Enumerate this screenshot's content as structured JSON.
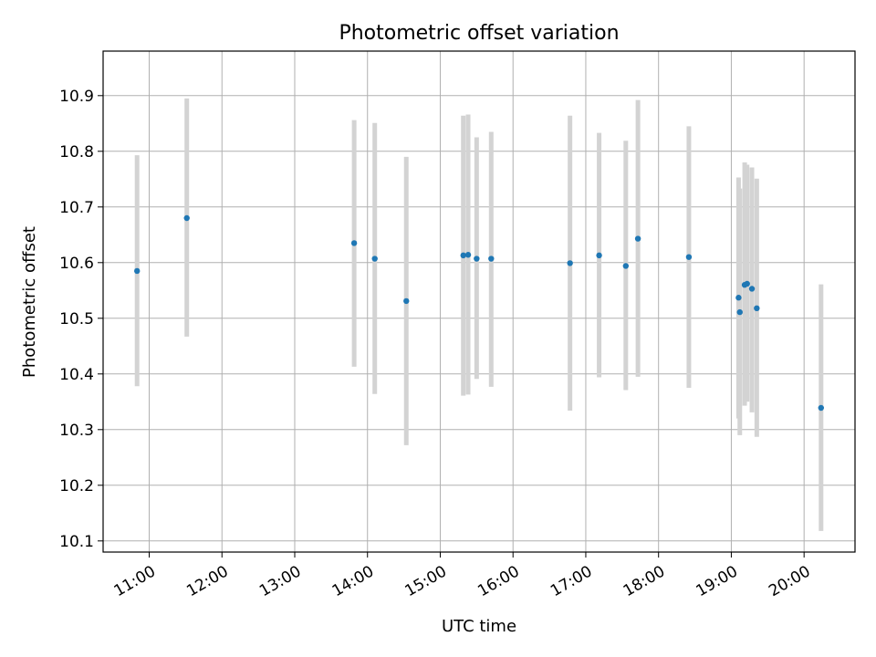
{
  "chart_data": {
    "type": "scatter",
    "title": "Photometric offset variation",
    "xlabel": "UTC time",
    "ylabel": "Photometric offset",
    "x_tick_labels": [
      "11:00",
      "12:00",
      "13:00",
      "14:00",
      "15:00",
      "16:00",
      "17:00",
      "18:00",
      "19:00",
      "20:00"
    ],
    "y_tick_labels": [
      "10.1",
      "10.2",
      "10.3",
      "10.4",
      "10.5",
      "10.6",
      "10.7",
      "10.8",
      "10.9"
    ],
    "xlim": [
      "10:22",
      "20:42"
    ],
    "ylim": [
      10.08,
      10.98
    ],
    "grid": true,
    "legend": "none",
    "point_color": "#1f77b4",
    "errorbar_color": "#d3d3d3",
    "series": [
      {
        "points": [
          {
            "x": "10:50",
            "y": 10.585,
            "low": 10.378,
            "high": 10.793
          },
          {
            "x": "11:31",
            "y": 10.68,
            "low": 10.467,
            "high": 10.895
          },
          {
            "x": "13:49",
            "y": 10.635,
            "low": 10.413,
            "high": 10.856
          },
          {
            "x": "14:06",
            "y": 10.607,
            "low": 10.364,
            "high": 10.851
          },
          {
            "x": "14:32",
            "y": 10.531,
            "low": 10.272,
            "high": 10.79
          },
          {
            "x": "15:19",
            "y": 10.613,
            "low": 10.361,
            "high": 10.864
          },
          {
            "x": "15:23",
            "y": 10.614,
            "low": 10.363,
            "high": 10.866
          },
          {
            "x": "15:30",
            "y": 10.607,
            "low": 10.391,
            "high": 10.825
          },
          {
            "x": "15:42",
            "y": 10.607,
            "low": 10.377,
            "high": 10.835
          },
          {
            "x": "16:47",
            "y": 10.599,
            "low": 10.334,
            "high": 10.864
          },
          {
            "x": "17:11",
            "y": 10.613,
            "low": 10.394,
            "high": 10.833
          },
          {
            "x": "17:33",
            "y": 10.594,
            "low": 10.371,
            "high": 10.819
          },
          {
            "x": "17:43",
            "y": 10.643,
            "low": 10.395,
            "high": 10.892
          },
          {
            "x": "18:25",
            "y": 10.61,
            "low": 10.375,
            "high": 10.845
          },
          {
            "x": "19:06",
            "y": 10.537,
            "low": 10.32,
            "high": 10.753
          },
          {
            "x": "19:07",
            "y": 10.511,
            "low": 10.29,
            "high": 10.733
          },
          {
            "x": "19:11",
            "y": 10.56,
            "low": 10.343,
            "high": 10.78
          },
          {
            "x": "19:13",
            "y": 10.562,
            "low": 10.35,
            "high": 10.776
          },
          {
            "x": "19:17",
            "y": 10.553,
            "low": 10.331,
            "high": 10.771
          },
          {
            "x": "19:21",
            "y": 10.518,
            "low": 10.287,
            "high": 10.751
          },
          {
            "x": "20:14",
            "y": 10.339,
            "low": 10.118,
            "high": 10.561
          }
        ]
      }
    ]
  }
}
